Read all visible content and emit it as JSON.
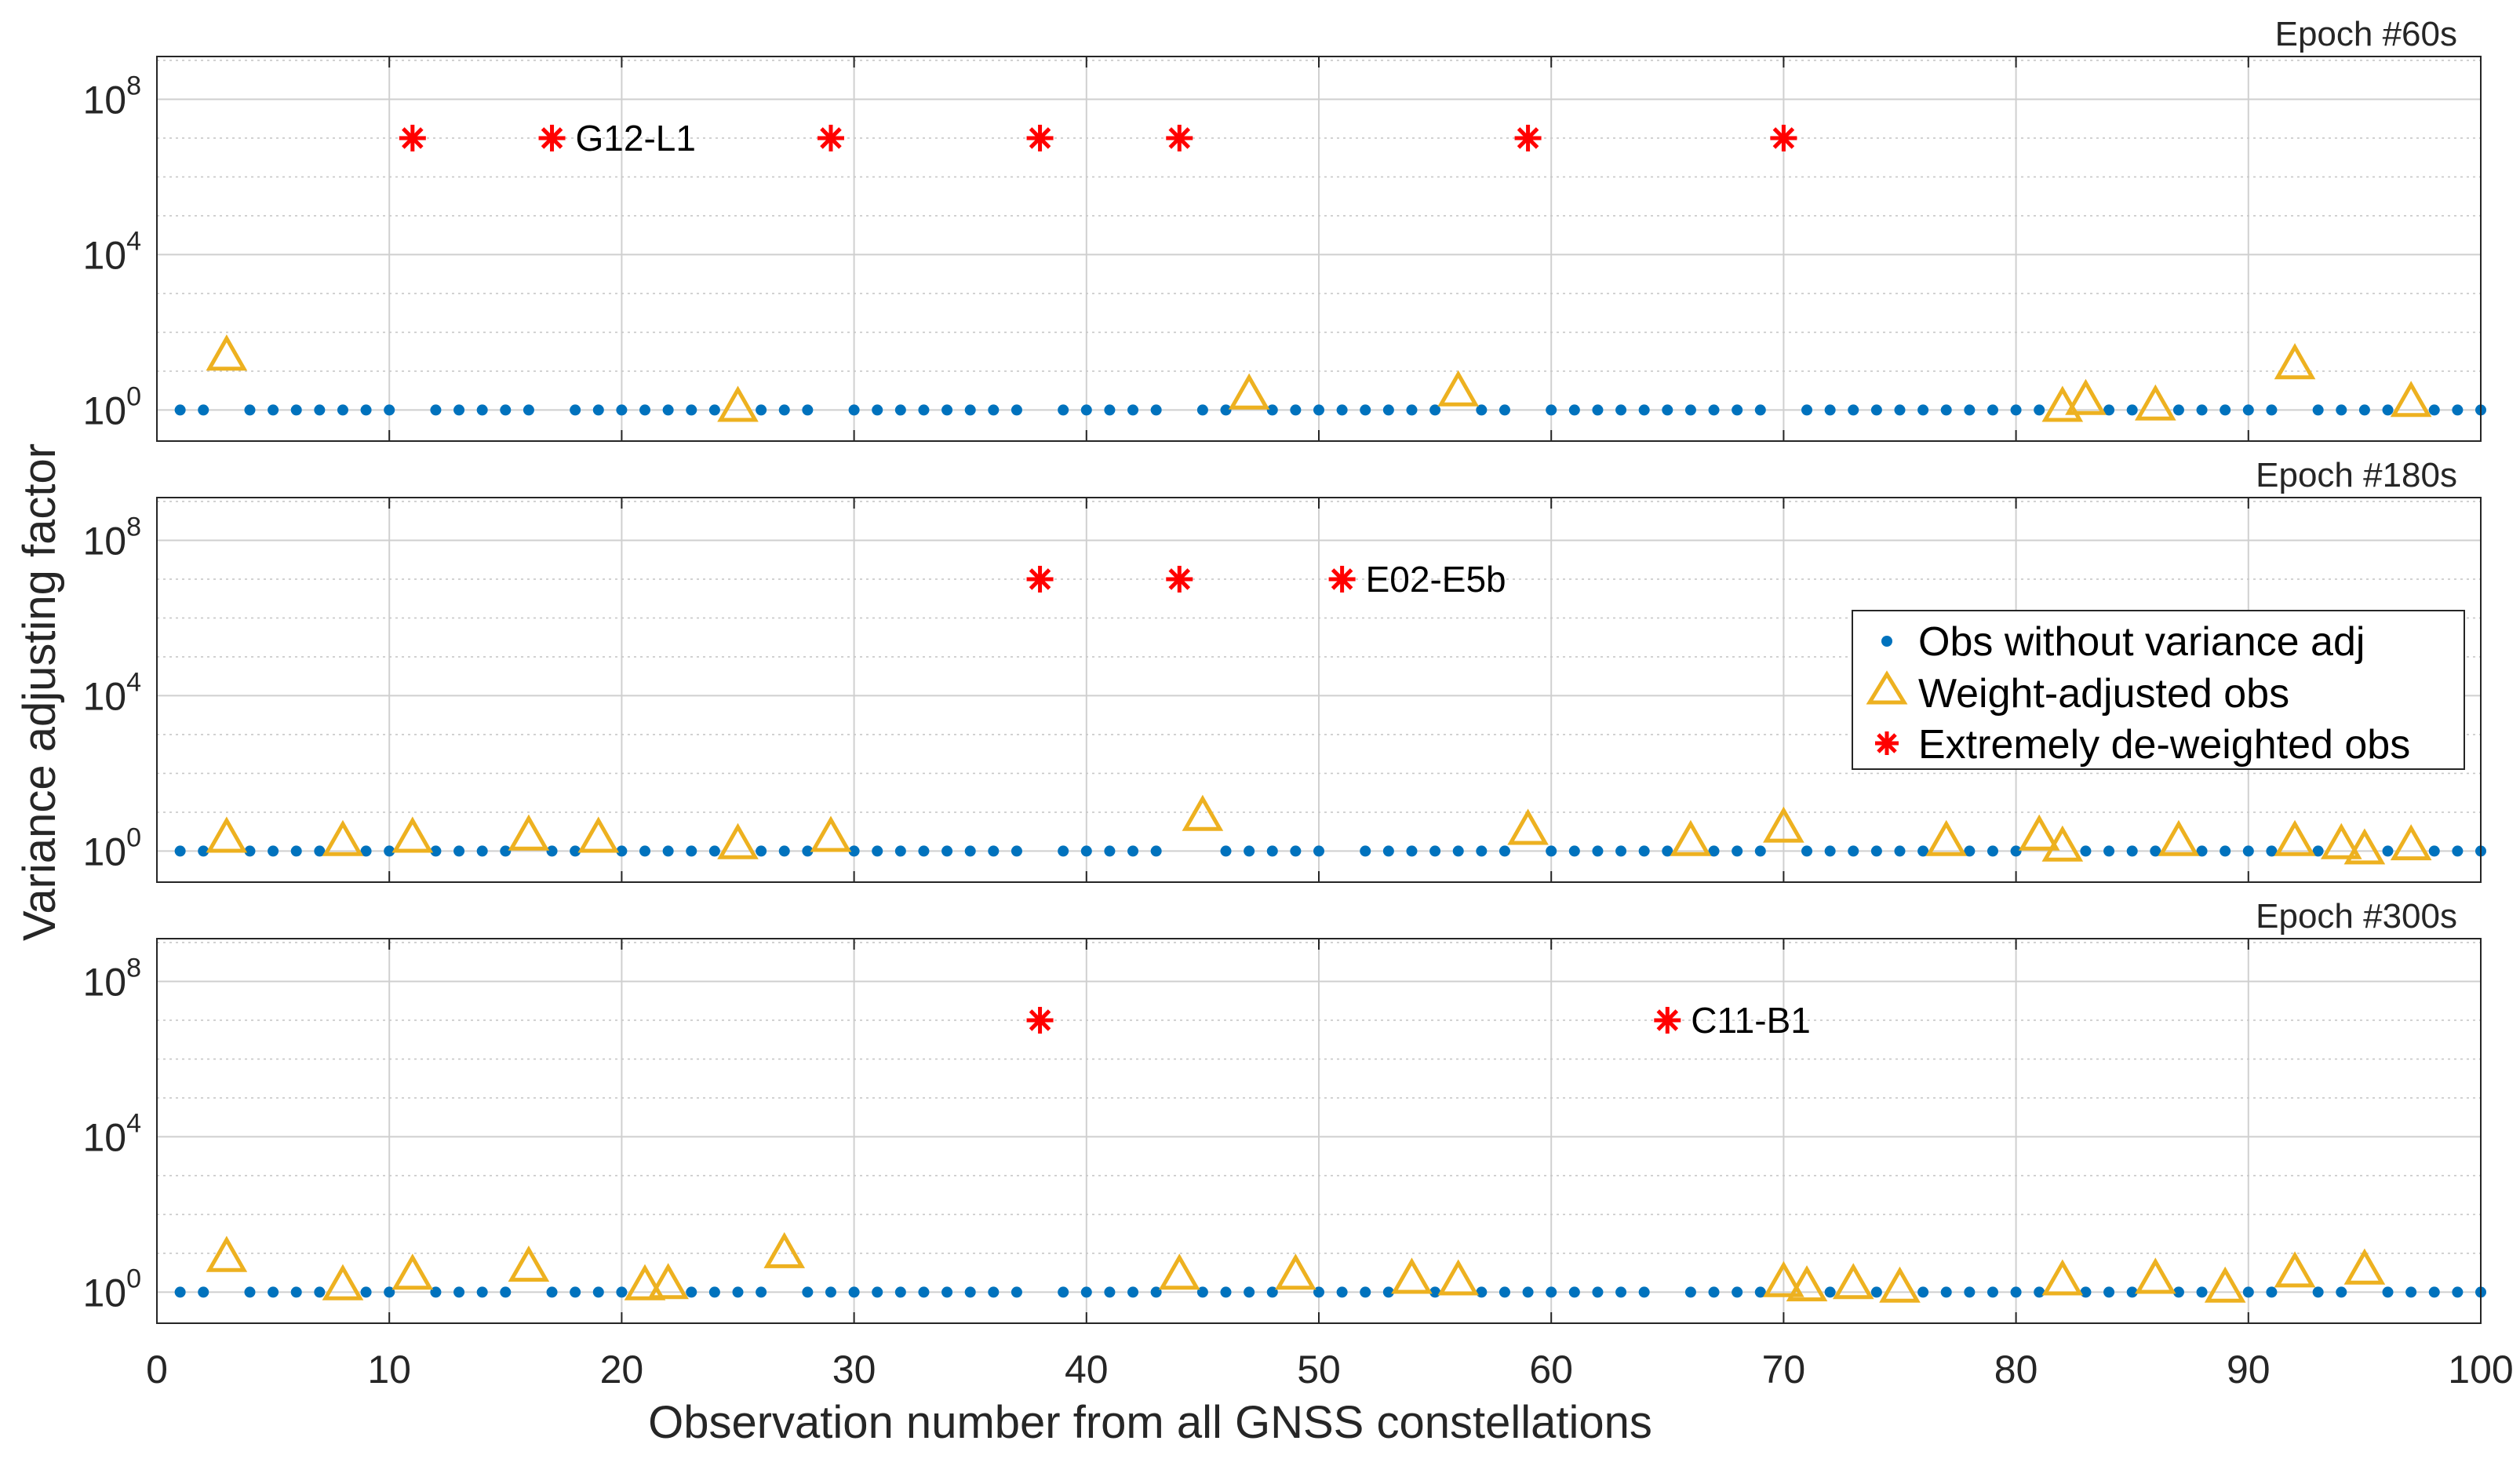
{
  "chart_data": {
    "type": "scatter",
    "xlabel": "Observation number from all GNSS constellations",
    "ylabel": "Variance adjusting factor",
    "xlim": [
      0,
      100
    ],
    "x_ticks": [
      0,
      10,
      20,
      30,
      40,
      50,
      60,
      70,
      80,
      90,
      100
    ],
    "ylim_log10": [
      -0.8,
      9.1
    ],
    "y_scale": "log",
    "y_ticks": [
      {
        "base": "10",
        "exp": "0",
        "value": 1
      },
      {
        "base": "10",
        "exp": "4",
        "value": 10000
      },
      {
        "base": "10",
        "exp": "8",
        "value": 100000000
      }
    ],
    "grid": true,
    "legend_position": "right",
    "legend": {
      "obs": "Obs without variance adj",
      "weight": "Weight-adjusted obs",
      "extreme": "Extremely de-weighted obs"
    },
    "colors": {
      "obs": "#0072BD",
      "weight": "#EDB120",
      "extreme": "#FF0000"
    },
    "n_obs": 100,
    "panels": [
      {
        "title": "Epoch #60s",
        "weight_adjusted": [
          {
            "x": 3,
            "y": 25
          },
          {
            "x": 25,
            "y": 1.2
          },
          {
            "x": 47,
            "y": 2.5
          },
          {
            "x": 56,
            "y": 3
          },
          {
            "x": 82,
            "y": 1.2
          },
          {
            "x": 83,
            "y": 1.8
          },
          {
            "x": 86,
            "y": 1.3
          },
          {
            "x": 92,
            "y": 15
          },
          {
            "x": 97,
            "y": 1.6
          }
        ],
        "extreme": [
          {
            "x": 11,
            "y": 10000000
          },
          {
            "x": 17,
            "y": 10000000
          },
          {
            "x": 29,
            "y": 10000000
          },
          {
            "x": 38,
            "y": 10000000
          },
          {
            "x": 44,
            "y": 10000000
          },
          {
            "x": 59,
            "y": 10000000
          },
          {
            "x": 70,
            "y": 10000000
          }
        ],
        "annotation": {
          "label": "G12-L1",
          "x": 17
        }
      },
      {
        "title": "Epoch #180s",
        "weight_adjusted": [
          {
            "x": 3,
            "y": 2.2
          },
          {
            "x": 8,
            "y": 1.8
          },
          {
            "x": 11,
            "y": 2.2
          },
          {
            "x": 16,
            "y": 2.5
          },
          {
            "x": 19,
            "y": 2.2
          },
          {
            "x": 25,
            "y": 1.5
          },
          {
            "x": 29,
            "y": 2.3
          },
          {
            "x": 45,
            "y": 8
          },
          {
            "x": 59,
            "y": 3.5
          },
          {
            "x": 66,
            "y": 1.8
          },
          {
            "x": 70,
            "y": 4
          },
          {
            "x": 77,
            "y": 1.8
          },
          {
            "x": 81,
            "y": 2.5
          },
          {
            "x": 82,
            "y": 1.3
          },
          {
            "x": 87,
            "y": 1.8
          },
          {
            "x": 92,
            "y": 1.8
          },
          {
            "x": 94,
            "y": 1.5
          },
          {
            "x": 95,
            "y": 1.1
          },
          {
            "x": 97,
            "y": 1.4
          }
        ],
        "extreme": [
          {
            "x": 38,
            "y": 10000000
          },
          {
            "x": 44,
            "y": 10000000
          },
          {
            "x": 51,
            "y": 10000000
          }
        ],
        "annotation": {
          "label": "E02-E5b",
          "x": 51
        }
      },
      {
        "title": "Epoch #300s",
        "weight_adjusted": [
          {
            "x": 3,
            "y": 8
          },
          {
            "x": 8,
            "y": 1.5
          },
          {
            "x": 11,
            "y": 2.8
          },
          {
            "x": 16,
            "y": 4.5
          },
          {
            "x": 21,
            "y": 1.5
          },
          {
            "x": 22,
            "y": 1.6
          },
          {
            "x": 27,
            "y": 10
          },
          {
            "x": 44,
            "y": 2.8
          },
          {
            "x": 49,
            "y": 2.8
          },
          {
            "x": 54,
            "y": 2.2
          },
          {
            "x": 56,
            "y": 2
          },
          {
            "x": 70,
            "y": 1.8
          },
          {
            "x": 71,
            "y": 1.4
          },
          {
            "x": 73,
            "y": 1.6
          },
          {
            "x": 75,
            "y": 1.3
          },
          {
            "x": 82,
            "y": 2
          },
          {
            "x": 86,
            "y": 2.2
          },
          {
            "x": 89,
            "y": 1.3
          },
          {
            "x": 92,
            "y": 3.2
          },
          {
            "x": 95,
            "y": 3.8
          }
        ],
        "extreme": [
          {
            "x": 38,
            "y": 10000000
          },
          {
            "x": 65,
            "y": 10000000
          }
        ],
        "annotation": {
          "label": "C11-B1",
          "x": 65
        }
      }
    ]
  }
}
